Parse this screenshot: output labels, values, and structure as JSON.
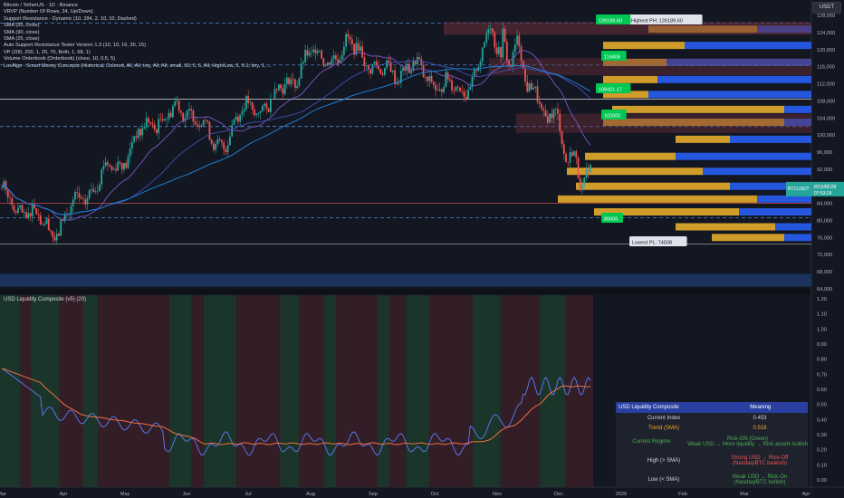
{
  "legend": [
    "Bitcoin / TetherUS · 1D · Binance",
    "VRVP (Number Of Rows, 24, Up/Down)",
    "Support Resistance - Dynamic (10, 284, 2, 10, 10, Dashed)",
    "SMA (55, close)",
    "SMA (90, close)",
    "SMA (25, close)",
    "Auto Support Resistance Tester Version 1.3 (10, 10, 16, 30, 15)",
    "VP (200, 200, 1, 20, 70, Both, 1, 68, 1)",
    "Volume Orderbook (Orderbook) (close, 10, 0.5, 5)",
    "LuxAlgo - Smart Money Concepts (Historical, Colored, All, All, tiny, All, All, small, 50, 5, 5, All, High/Low, 3, 0.1, tiny, 1, ..."
  ],
  "currency_button": "USDT",
  "price_axis": [
    "128,000",
    "124,000",
    "120,000",
    "116,000",
    "112,000",
    "108,000",
    "104,000",
    "100,000",
    "96,000",
    "92,000",
    "88,000",
    "84,000",
    "80,000",
    "76,000",
    "72,000",
    "68,000",
    "64,000"
  ],
  "current_price": {
    "symbol": "BTCUSDT",
    "price": "87,543.28",
    "countdown": "07:53:24"
  },
  "callouts": {
    "highest": "Highest PH: 126189.60",
    "lowest": "Lowest PL: 74508",
    "l1": "126189.60",
    "l2": "116408",
    "l3": "108421.17",
    "l4": "102000",
    "l5": "80606"
  },
  "pane2": {
    "title": "USD Liquidity Composite (v5) (20)",
    "axis": [
      "1.20",
      "1.10",
      "1.00",
      "0.90",
      "0.80",
      "0.70",
      "0.60",
      "0.50",
      "0.40",
      "0.30",
      "0.20",
      "0.10",
      "0.00"
    ]
  },
  "time_axis": [
    "Mar",
    "Apr",
    "May",
    "Jun",
    "Jul",
    "Aug",
    "Sep",
    "Oct",
    "Nov",
    "Dec",
    "2026",
    "Feb",
    "Mar",
    "Apr"
  ],
  "table": {
    "header": [
      "USD Liquidity Composite",
      "Meaning"
    ],
    "current_label": "Current Index",
    "current_value": "0.453",
    "trend_label": "Trend (SMA)",
    "trend_value": "0.518",
    "regime_label": "Current Regime",
    "regime_l1": "Risk-ON (Green)",
    "regime_l2": "Weak USD → More liquidity → Risk assets bullish",
    "high_label": "High (> SMA)",
    "high_l1": "Strong USD → Risk-Off",
    "high_l2": "(Nasdaq/BTC bearish)",
    "low_label": "Low (< SMA)",
    "low_l1": "Weak USD → Risk-On",
    "low_l2": "(Nasdaq/BTC bullish)"
  },
  "colors": {
    "bg": "#131722",
    "up": "#26a69a",
    "down": "#ef5350",
    "sma_orange": "#f0703c",
    "liq_blue": "#5c7cfa",
    "vp_blue": "#2962ff",
    "vp_yellow": "#f2b42c",
    "ph_label": "#ef5350",
    "pl_label": "#26a69a"
  }
}
